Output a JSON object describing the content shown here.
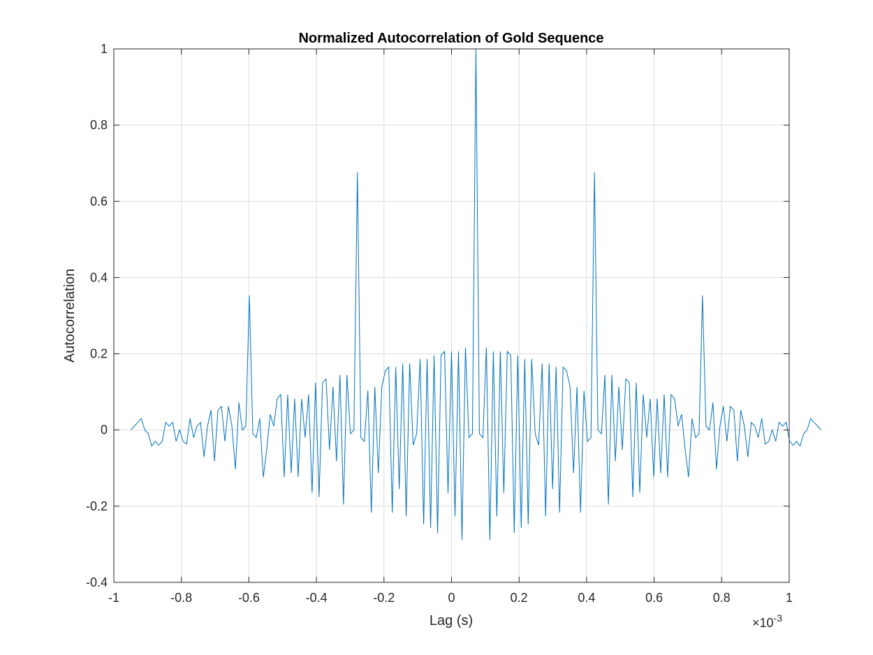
{
  "chart_data": {
    "type": "line",
    "title": "Normalized Autocorrelation of Gold Sequence",
    "xlabel": "Lag (s)",
    "ylabel": "Autocorrelation",
    "x_exponent_label": "×10",
    "x_exponent_power": "-3",
    "xlim": [
      -1,
      1
    ],
    "ylim": [
      -0.4,
      1
    ],
    "xticks": [
      -1,
      -0.8,
      -0.6,
      -0.4,
      -0.2,
      0,
      0.2,
      0.4,
      0.6,
      0.8,
      1
    ],
    "xtick_labels": [
      "-1",
      "-0.8",
      "-0.6",
      "-0.4",
      "-0.2",
      "0",
      "0.2",
      "0.4",
      "0.6",
      "0.8",
      "1"
    ],
    "yticks": [
      -0.4,
      -0.2,
      0,
      0.2,
      0.4,
      0.6,
      0.8,
      1
    ],
    "ytick_labels": [
      "-0.4",
      "-0.2",
      "0",
      "0.2",
      "0.4",
      "0.6",
      "0.8",
      "1"
    ],
    "grid": true,
    "line_color": "#0072BD",
    "x_step": 0.010323,
    "x_start": -0.9497,
    "series": [
      {
        "values": [
          0.0,
          0.01,
          0.02,
          0.03,
          0.0,
          -0.01,
          -0.042,
          -0.03,
          -0.04,
          -0.03,
          0.02,
          0.01,
          0.02,
          -0.03,
          0.0,
          -0.03,
          -0.037,
          0.03,
          -0.02,
          0.01,
          0.02,
          -0.071,
          0.01,
          0.052,
          -0.082,
          0.052,
          0.062,
          -0.03,
          0.062,
          0.01,
          -0.103,
          0.072,
          0.0,
          0.01,
          0.353,
          -0.01,
          -0.02,
          0.03,
          -0.124,
          -0.05,
          0.041,
          0.01,
          0.082,
          0.093,
          -0.124,
          0.093,
          -0.113,
          0.082,
          -0.123,
          0.082,
          -0.02,
          0.093,
          -0.165,
          0.124,
          -0.176,
          0.124,
          0.134,
          -0.052,
          0.113,
          -0.082,
          0.144,
          -0.196,
          0.144,
          -0.01,
          0.0,
          0.676,
          -0.02,
          -0.03,
          0.103,
          -0.217,
          0.113,
          -0.113,
          0.113,
          0.155,
          0.165,
          -0.217,
          0.165,
          -0.155,
          0.175,
          -0.227,
          0.175,
          -0.04,
          -0.01,
          0.186,
          -0.248,
          0.186,
          -0.257,
          0.196,
          -0.27,
          0.196,
          0.206,
          -0.166,
          0.206,
          -0.227,
          0.206,
          -0.289,
          0.216,
          -0.02,
          -0.01,
          1.0,
          -0.01,
          -0.02,
          0.216,
          -0.289,
          0.206,
          -0.227,
          0.206,
          -0.166,
          0.206,
          0.196,
          -0.27,
          0.196,
          -0.257,
          0.186,
          -0.248,
          0.186,
          -0.01,
          -0.04,
          0.175,
          -0.227,
          0.175,
          -0.155,
          0.165,
          -0.217,
          0.165,
          0.155,
          0.113,
          -0.113,
          0.113,
          -0.217,
          0.103,
          -0.03,
          -0.02,
          0.676,
          0.0,
          -0.01,
          0.144,
          -0.196,
          0.144,
          -0.082,
          0.113,
          -0.052,
          0.134,
          0.124,
          -0.176,
          0.124,
          -0.165,
          0.093,
          -0.02,
          0.082,
          -0.123,
          0.082,
          -0.113,
          0.093,
          -0.124,
          0.093,
          0.082,
          0.01,
          0.041,
          -0.05,
          -0.124,
          0.03,
          -0.02,
          -0.01,
          0.353,
          0.01,
          0.0,
          0.072,
          -0.103,
          0.01,
          0.062,
          -0.03,
          0.062,
          0.052,
          -0.082,
          0.052,
          0.01,
          -0.071,
          0.02,
          0.01,
          -0.02,
          0.03,
          -0.037,
          -0.03,
          0.0,
          -0.03,
          0.02,
          0.01,
          0.02,
          -0.03,
          -0.04,
          -0.03,
          -0.042,
          -0.01,
          0.0,
          0.03,
          0.02,
          0.01,
          0.0
        ]
      }
    ]
  }
}
